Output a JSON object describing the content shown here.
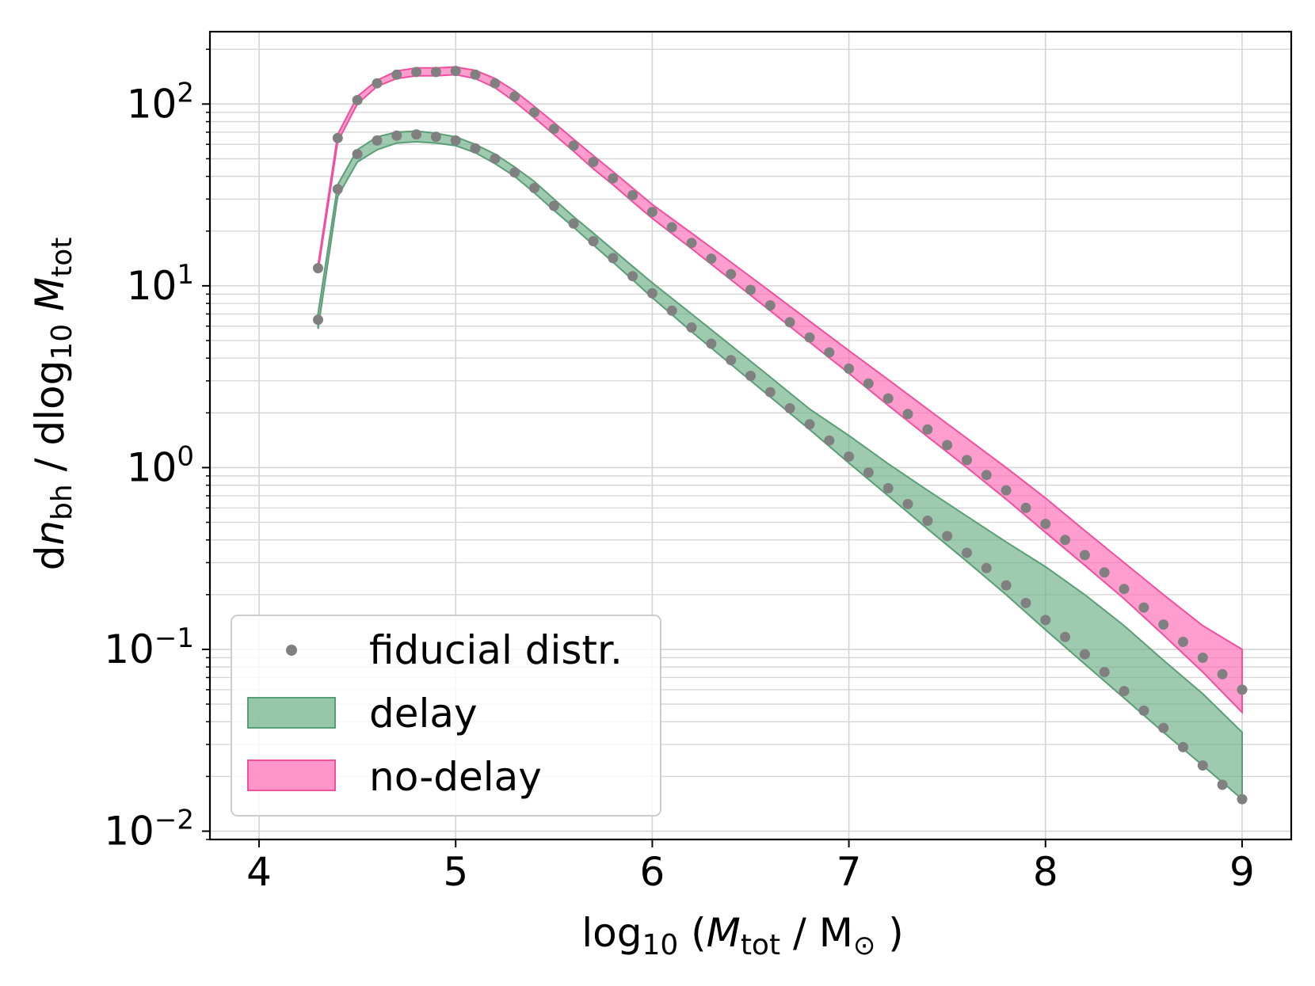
{
  "chart_data": {
    "type": "line",
    "title": "",
    "xlabel": {
      "base": "log",
      "sub": "10",
      "open": " (",
      "var": "M",
      "varsub": "tot",
      "unit": " / M",
      "sun": "⊙",
      "close": " )"
    },
    "ylabel": {
      "d1": "d",
      "var": "n",
      "varsub": "bh",
      "mid": " / dlog",
      "sub": "10",
      "var2": " M",
      "var2sub": "tot"
    },
    "xlim": [
      3.75,
      9.25
    ],
    "ylim": [
      0.009,
      250
    ],
    "yscale": "log",
    "grid": true,
    "xticks": [
      4,
      5,
      6,
      7,
      8,
      9
    ],
    "xtick_labels": [
      "4",
      "5",
      "6",
      "7",
      "8",
      "9"
    ],
    "yticks": [
      0.01,
      0.1,
      1,
      10,
      100
    ],
    "ytick_labels": [
      {
        "base": "10",
        "exp": "−2"
      },
      {
        "base": "10",
        "exp": "−1"
      },
      {
        "base": "10",
        "exp": "0"
      },
      {
        "base": "10",
        "exp": "1"
      },
      {
        "base": "10",
        "exp": "2"
      }
    ],
    "legend": {
      "position": "lower-left"
    },
    "colors": {
      "delay_fill": "#6aaf85",
      "delay_edge": "#5a9e75",
      "nodelay_fill": "#ff69b4",
      "nodelay_edge": "#f0509f",
      "dots": "#808080"
    },
    "series": [
      {
        "name": "fiducial distr.",
        "kind": "points",
        "groups": [
          {
            "x": [
              4.3,
              4.4,
              4.5,
              4.6,
              4.7,
              4.8,
              4.9,
              5.0,
              5.1,
              5.2,
              5.3,
              5.4,
              5.5,
              5.6,
              5.7,
              5.8,
              5.9,
              6.0,
              6.1,
              6.2,
              6.3,
              6.4,
              6.5,
              6.6,
              6.7,
              6.8,
              6.9,
              7.0,
              7.1,
              7.2,
              7.3,
              7.4,
              7.5,
              7.6,
              7.7,
              7.8,
              7.9,
              8.0,
              8.1,
              8.2,
              8.3,
              8.4,
              8.5,
              8.6,
              8.7,
              8.8,
              8.9,
              9.0
            ],
            "y": [
              12.5,
              65,
              105,
              130,
              145,
              150,
              150,
              152,
              145,
              130,
              110,
              90,
              73,
              59,
              48,
              39,
              31.5,
              25.5,
              21,
              17.2,
              14.1,
              11.6,
              9.5,
              7.8,
              6.3,
              5.2,
              4.3,
              3.5,
              2.9,
              2.4,
              1.97,
              1.62,
              1.33,
              1.1,
              0.91,
              0.75,
              0.6,
              0.49,
              0.4,
              0.33,
              0.265,
              0.215,
              0.17,
              0.137,
              0.11,
              0.09,
              0.073,
              0.06
            ]
          },
          {
            "x": [
              4.3,
              4.4,
              4.5,
              4.6,
              4.7,
              4.8,
              4.9,
              5.0,
              5.1,
              5.2,
              5.3,
              5.4,
              5.5,
              5.6,
              5.7,
              5.8,
              5.9,
              6.0,
              6.1,
              6.2,
              6.3,
              6.4,
              6.5,
              6.6,
              6.7,
              6.8,
              6.9,
              7.0,
              7.1,
              7.2,
              7.3,
              7.4,
              7.5,
              7.6,
              7.7,
              7.8,
              7.9,
              8.0,
              8.1,
              8.2,
              8.3,
              8.4,
              8.5,
              8.6,
              8.7,
              8.8,
              8.9,
              9.0
            ],
            "y": [
              6.5,
              34,
              53,
              63,
              67,
              68,
              66,
              63,
              57,
              50,
              42,
              34.5,
              27.5,
              22,
              17.6,
              14.2,
              11.3,
              9.1,
              7.3,
              5.9,
              4.8,
              3.9,
              3.2,
              2.6,
              2.12,
              1.73,
              1.41,
              1.15,
              0.94,
              0.77,
              0.63,
              0.51,
              0.42,
              0.34,
              0.28,
              0.225,
              0.18,
              0.145,
              0.117,
              0.094,
              0.075,
              0.059,
              0.046,
              0.037,
              0.029,
              0.023,
              0.018,
              0.015
            ]
          }
        ]
      },
      {
        "name": "delay",
        "kind": "band",
        "x": [
          4.3,
          4.4,
          4.5,
          4.6,
          4.7,
          4.8,
          4.9,
          5.0,
          5.1,
          5.2,
          5.3,
          5.4,
          5.5,
          5.6,
          5.7,
          5.8,
          5.9,
          6.0,
          6.2,
          6.4,
          6.6,
          6.8,
          7.0,
          7.2,
          7.4,
          7.6,
          7.8,
          8.0,
          8.2,
          8.4,
          8.6,
          8.8,
          9.0
        ],
        "lower": [
          5.8,
          31,
          48,
          56,
          61,
          62,
          61,
          59,
          54,
          47,
          40,
          32.5,
          26,
          21,
          16.8,
          13.5,
          10.8,
          8.6,
          5.6,
          3.7,
          2.45,
          1.62,
          1.06,
          0.7,
          0.46,
          0.305,
          0.2,
          0.128,
          0.083,
          0.054,
          0.035,
          0.023,
          0.015
        ],
        "upper": [
          7,
          36,
          56,
          66,
          70,
          71,
          69,
          66,
          60,
          53,
          45,
          37.5,
          30,
          24,
          19.5,
          15.8,
          12.8,
          10.4,
          7,
          4.7,
          3.15,
          2.1,
          1.5,
          1.05,
          0.75,
          0.54,
          0.39,
          0.285,
          0.2,
          0.135,
          0.087,
          0.057,
          0.035
        ]
      },
      {
        "name": "no-delay",
        "kind": "band",
        "x": [
          4.3,
          4.4,
          4.5,
          4.6,
          4.7,
          4.8,
          4.9,
          5.0,
          5.1,
          5.2,
          5.3,
          5.4,
          5.5,
          5.6,
          5.7,
          5.8,
          5.9,
          6.0,
          6.2,
          6.4,
          6.6,
          6.8,
          7.0,
          7.2,
          7.4,
          7.6,
          7.8,
          8.0,
          8.2,
          8.4,
          8.6,
          8.8,
          9.0
        ],
        "lower": [
          12,
          62,
          100,
          125,
          138,
          143,
          143,
          145,
          138,
          123,
          103,
          84,
          68,
          55,
          44,
          36,
          29,
          23.5,
          16,
          10.8,
          7.3,
          4.9,
          3.3,
          2.2,
          1.48,
          1.0,
          0.67,
          0.44,
          0.29,
          0.19,
          0.12,
          0.075,
          0.045
        ],
        "upper": [
          13,
          68,
          110,
          135,
          152,
          158,
          158,
          160,
          153,
          138,
          118,
          97,
          79,
          64,
          52,
          42.5,
          34.5,
          28,
          19.5,
          13.5,
          9.3,
          6.4,
          4.4,
          3.05,
          2.1,
          1.45,
          1.0,
          0.68,
          0.45,
          0.3,
          0.2,
          0.135,
          0.1
        ]
      }
    ]
  }
}
